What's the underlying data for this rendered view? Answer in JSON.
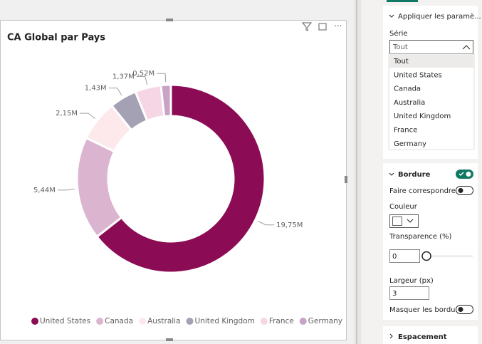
{
  "chart_data": {
    "type": "donut",
    "title": "CA Global par Pays",
    "categories": [
      "United States",
      "Canada",
      "Australia",
      "United Kingdom",
      "France",
      "Germany"
    ],
    "values": [
      19.75,
      5.44,
      2.15,
      1.43,
      1.37,
      0.52
    ],
    "value_labels": [
      "19,75M",
      "5,44M",
      "2,15M",
      "1,43M",
      "1,37M",
      "0,52M"
    ],
    "colors": [
      "#8b0c55",
      "#dbb5cf",
      "#fde9ec",
      "#a3a1b3",
      "#f6d6e4",
      "#c9a2c7"
    ],
    "legend": "bottom"
  },
  "format_pane": {
    "apply_section": "Appliquer les paramè...",
    "series_label": "Série",
    "series_value": "Tout",
    "series_options": [
      "Tout",
      "United States",
      "Canada",
      "Australia",
      "United Kingdom",
      "France",
      "Germany"
    ],
    "border_section": "Bordure",
    "match_label": "Faire correspondre ...",
    "color_label": "Couleur",
    "transparency_label": "Transparence (%)",
    "transparency_value": "0",
    "width_label": "Largeur (px)",
    "width_value": "3",
    "hide_label": "Masquer les bordu...",
    "spacing_section": "Espacement"
  }
}
